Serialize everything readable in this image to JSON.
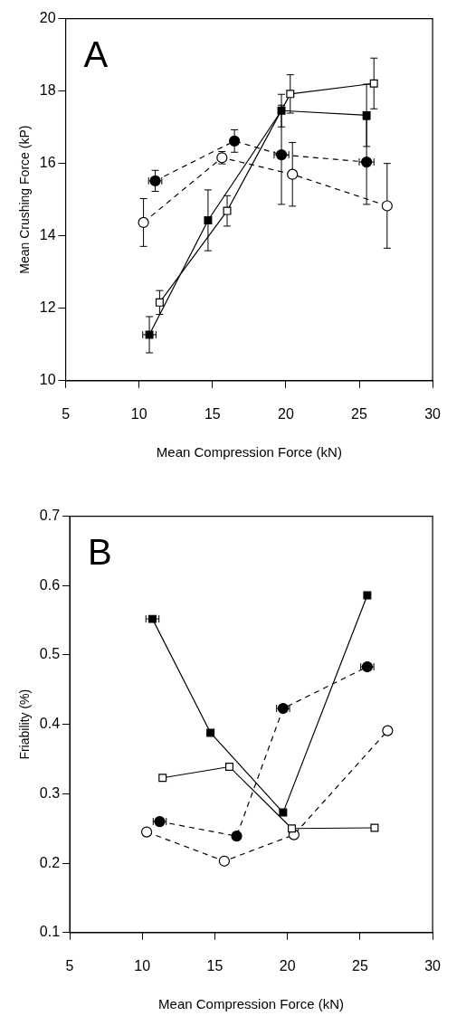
{
  "chart_data": [
    {
      "type": "line",
      "annotations": [
        "A"
      ],
      "xlabel": "Mean Compression Force (kN)",
      "ylabel": "Mean Crushing Force (kP)",
      "xlim": [
        5,
        30
      ],
      "xticks": [
        5,
        10,
        15,
        20,
        25,
        30
      ],
      "ylim": [
        10,
        20
      ],
      "yticks": [
        10,
        12,
        14,
        16,
        18,
        20
      ],
      "grid": false,
      "legend": false,
      "series": [
        {
          "color": "#000000",
          "marker": "square",
          "line_style": "solid",
          "x": [
            10.7,
            14.7,
            19.7,
            25.5
          ],
          "values": [
            11.27,
            14.43,
            17.46,
            17.33
          ],
          "errors": [
            0.5,
            0.84,
            0.45,
            0.86
          ],
          "xerrors": [
            0.45,
            null,
            null,
            null
          ]
        },
        {
          "color": "#000000",
          "colors": [
            "#ffffff",
            "#ffffff",
            "#ffffff",
            "#ffffff"
          ],
          "marker": "square",
          "line_style": "solid",
          "x": [
            11.4,
            16.0,
            20.3,
            26.0
          ],
          "values": [
            12.16,
            14.69,
            17.92,
            18.21
          ],
          "errors": [
            0.33,
            0.42,
            0.53,
            0.7
          ]
        },
        {
          "color": "#000000",
          "marker": "circle",
          "line_style": "dashed",
          "x": [
            11.1,
            16.5,
            19.7,
            25.5
          ],
          "values": [
            15.52,
            16.62,
            16.24,
            16.04
          ],
          "errors": [
            0.29,
            0.31,
            1.37,
            1.17
          ],
          "xerrors": [
            0.45,
            null,
            0.5,
            0.5
          ]
        },
        {
          "color": "#000000",
          "colors": [
            "#ffffff",
            "#ffffff",
            "#ffffff",
            "#ffffff"
          ],
          "marker": "circle",
          "line_style": "dashed",
          "x": [
            10.3,
            15.65,
            20.45,
            26.9
          ],
          "values": [
            14.37,
            16.16,
            15.7,
            14.83
          ],
          "errors": [
            0.66,
            0.17,
            0.88,
            1.17
          ]
        }
      ]
    },
    {
      "type": "line",
      "annotations": [
        "B"
      ],
      "xlabel": "Mean Compression Force (kN)",
      "ylabel": "Friability (%)",
      "xlim": [
        5,
        30
      ],
      "xticks": [
        5,
        10,
        15,
        20,
        25,
        30
      ],
      "ylim": [
        0.1,
        0.7
      ],
      "yticks": [
        0.1,
        0.2,
        0.3,
        0.4,
        0.5,
        0.6,
        0.7
      ],
      "grid": false,
      "legend": false,
      "series": [
        {
          "color": "#000000",
          "marker": "square",
          "line_style": "solid",
          "x": [
            10.7,
            14.7,
            19.7,
            25.5
          ],
          "values": [
            0.552,
            0.388,
            0.273,
            0.586
          ],
          "xerrors": [
            0.45,
            null,
            null,
            null
          ]
        },
        {
          "color": "#000000",
          "colors": [
            "#ffffff",
            "#ffffff",
            "#ffffff",
            "#ffffff"
          ],
          "marker": "square",
          "line_style": "solid",
          "x": [
            11.4,
            16.0,
            20.3,
            26.0
          ],
          "values": [
            0.323,
            0.339,
            0.25,
            0.251
          ]
        },
        {
          "color": "#000000",
          "marker": "circle",
          "line_style": "dashed",
          "x": [
            11.2,
            16.5,
            19.7,
            25.5
          ],
          "values": [
            0.26,
            0.239,
            0.423,
            0.483
          ],
          "xerrors": [
            0.45,
            null,
            0.45,
            0.45
          ]
        },
        {
          "color": "#000000",
          "colors": [
            "#ffffff",
            "#ffffff",
            "#ffffff",
            "#ffffff"
          ],
          "marker": "circle",
          "line_style": "dashed",
          "x": [
            10.3,
            15.65,
            20.45,
            26.9
          ],
          "values": [
            0.245,
            0.203,
            0.241,
            0.391
          ]
        }
      ]
    }
  ]
}
